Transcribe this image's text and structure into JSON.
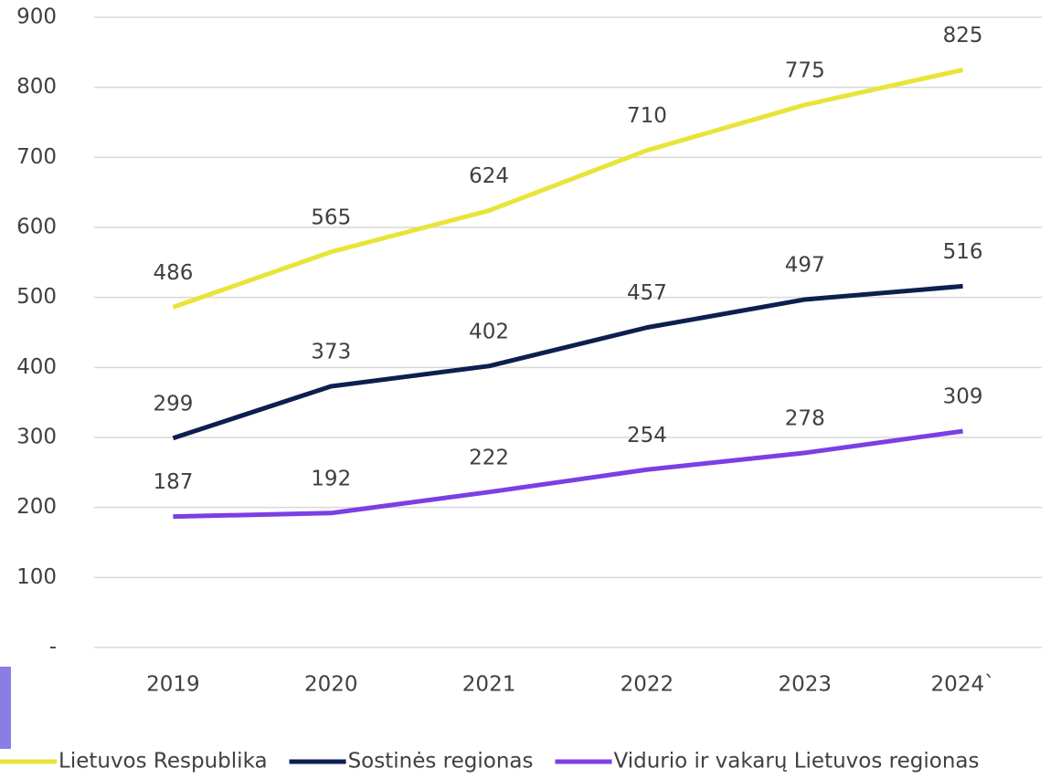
{
  "chart_data": {
    "type": "line",
    "categories": [
      "2019",
      "2020",
      "2021",
      "2022",
      "2023",
      "2024`"
    ],
    "series": [
      {
        "name": "Lietuvos Respublika",
        "color": "#e8e43a",
        "values": [
          486,
          565,
          624,
          710,
          775,
          825
        ]
      },
      {
        "name": "Sostinės regionas",
        "color": "#0d1f4f",
        "values": [
          299,
          373,
          402,
          457,
          497,
          516
        ]
      },
      {
        "name": "Vidurio ir vakarų Lietuvos regionas",
        "color": "#7b3fe4",
        "values": [
          187,
          192,
          222,
          254,
          278,
          309
        ]
      }
    ],
    "ylim": [
      0,
      900
    ],
    "yticks": [
      {
        "value": 0,
        "label": "-"
      },
      100,
      200,
      300,
      400,
      500,
      600,
      700,
      800,
      900
    ],
    "grid": true,
    "legend": "bottom"
  }
}
